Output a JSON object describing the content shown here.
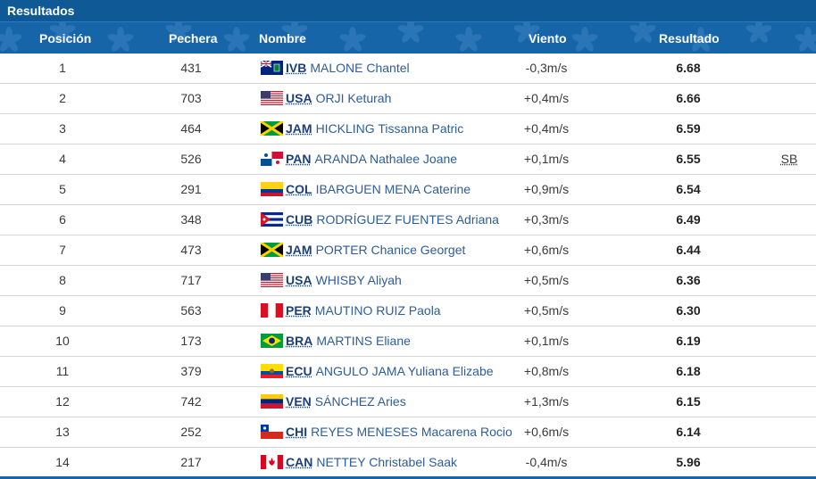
{
  "section_title": "Resultados",
  "columns": {
    "position": "Posición",
    "bib": "Pechera",
    "name": "Nombre",
    "wind": "Viento",
    "result": "Resultado"
  },
  "rows": [
    {
      "pos": "1",
      "bib": "431",
      "code": "IVB",
      "flag": "ivb-flag-icon",
      "name": "MALONE Chantel",
      "wind": "-0,3m/s",
      "result": "6.68",
      "note": ""
    },
    {
      "pos": "2",
      "bib": "703",
      "code": "USA",
      "flag": "usa-flag-icon",
      "name": "ORJI Keturah",
      "wind": "+0,4m/s",
      "result": "6.66",
      "note": ""
    },
    {
      "pos": "3",
      "bib": "464",
      "code": "JAM",
      "flag": "jam-flag-icon",
      "name": "HICKLING Tissanna Patric",
      "wind": "+0,4m/s",
      "result": "6.59",
      "note": ""
    },
    {
      "pos": "4",
      "bib": "526",
      "code": "PAN",
      "flag": "pan-flag-icon",
      "name": "ARANDA Nathalee Joane",
      "wind": "+0,1m/s",
      "result": "6.55",
      "note": "SB"
    },
    {
      "pos": "5",
      "bib": "291",
      "code": "COL",
      "flag": "col-flag-icon",
      "name": "IBARGUEN MENA Caterine",
      "wind": "+0,9m/s",
      "result": "6.54",
      "note": ""
    },
    {
      "pos": "6",
      "bib": "348",
      "code": "CUB",
      "flag": "cub-flag-icon",
      "name": "RODRÍGUEZ FUENTES Adriana",
      "wind": "+0,3m/s",
      "result": "6.49",
      "note": ""
    },
    {
      "pos": "7",
      "bib": "473",
      "code": "JAM",
      "flag": "jam-flag-icon",
      "name": "PORTER Chanice Georget",
      "wind": "+0,6m/s",
      "result": "6.44",
      "note": ""
    },
    {
      "pos": "8",
      "bib": "717",
      "code": "USA",
      "flag": "usa-flag-icon",
      "name": "WHISBY Aliyah",
      "wind": "+0,5m/s",
      "result": "6.36",
      "note": ""
    },
    {
      "pos": "9",
      "bib": "563",
      "code": "PER",
      "flag": "per-flag-icon",
      "name": "MAUTINO RUIZ Paola",
      "wind": "+0,5m/s",
      "result": "6.30",
      "note": ""
    },
    {
      "pos": "10",
      "bib": "173",
      "code": "BRA",
      "flag": "bra-flag-icon",
      "name": "MARTINS Eliane",
      "wind": "+0,1m/s",
      "result": "6.19",
      "note": ""
    },
    {
      "pos": "11",
      "bib": "379",
      "code": "ECU",
      "flag": "ecu-flag-icon",
      "name": "ANGULO JAMA Yuliana Elizabe",
      "wind": "+0,8m/s",
      "result": "6.18",
      "note": ""
    },
    {
      "pos": "12",
      "bib": "742",
      "code": "VEN",
      "flag": "ven-flag-icon",
      "name": "SÁNCHEZ Aries",
      "wind": "+1,3m/s",
      "result": "6.15",
      "note": ""
    },
    {
      "pos": "13",
      "bib": "252",
      "code": "CHI",
      "flag": "chi-flag-icon",
      "name": "REYES MENESES Macarena Rocio",
      "wind": "+0,6m/s",
      "result": "6.14",
      "note": ""
    },
    {
      "pos": "14",
      "bib": "217",
      "code": "CAN",
      "flag": "can-flag-icon",
      "name": "NETTEY Christabel Saak",
      "wind": "-0,4m/s",
      "result": "5.96",
      "note": ""
    }
  ],
  "colors": {
    "header_bg": "#1565a8",
    "title_bg": "#0f5a96",
    "name_link": "#2d5d9a"
  }
}
